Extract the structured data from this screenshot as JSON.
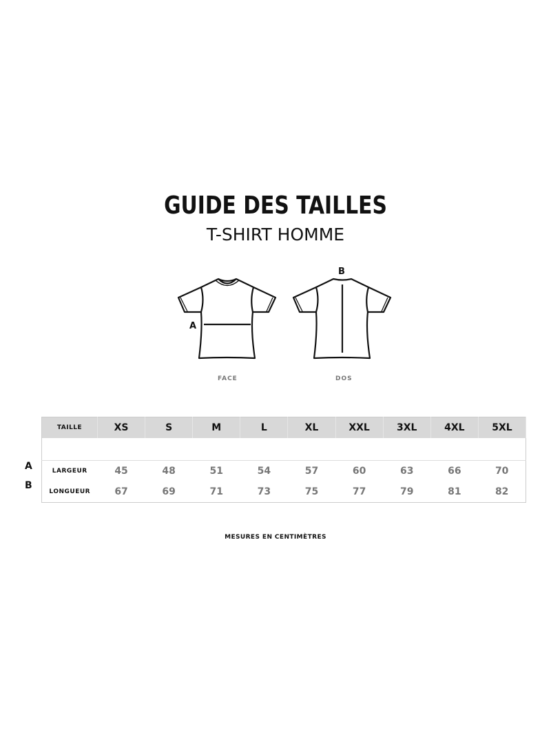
{
  "header": {
    "title": "GUIDE DES TAILLES",
    "subtitle": "T-SHIRT HOMME"
  },
  "diagram": {
    "front_label": "FACE",
    "back_label": "DOS",
    "marker_a": "A",
    "marker_b": "B"
  },
  "table": {
    "header_label": "TAILLE",
    "sizes": [
      "XS",
      "S",
      "M",
      "L",
      "XL",
      "XXL",
      "3XL",
      "4XL",
      "5XL"
    ],
    "rows": [
      {
        "letter": "A",
        "label": "LARGEUR",
        "values": [
          "45",
          "48",
          "51",
          "54",
          "57",
          "60",
          "63",
          "66",
          "70"
        ]
      },
      {
        "letter": "B",
        "label": "LONGUEUR",
        "values": [
          "67",
          "69",
          "71",
          "73",
          "75",
          "77",
          "79",
          "81",
          "82"
        ]
      }
    ]
  },
  "footer": {
    "note": "MESURES EN CENTIMÈTRES"
  }
}
